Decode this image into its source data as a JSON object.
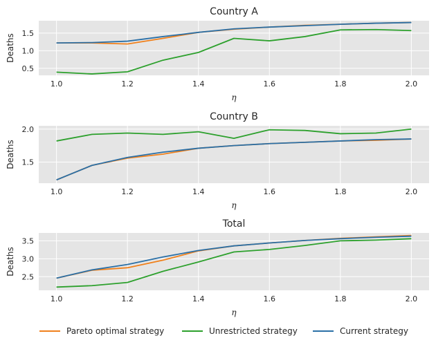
{
  "chart_data": [
    {
      "type": "line",
      "title": "Country A",
      "xlabel": "η",
      "ylabel": "Deaths",
      "xlim": [
        0.95,
        2.05
      ],
      "ylim": [
        0.3,
        1.85
      ],
      "xticks": [
        "1.0",
        "1.2",
        "1.4",
        "1.6",
        "1.8",
        "2.0"
      ],
      "yticks": [
        "0.5",
        "1.0",
        "1.5"
      ],
      "grid": true,
      "x": [
        1.0,
        1.1,
        1.2,
        1.3,
        1.4,
        1.5,
        1.6,
        1.7,
        1.8,
        1.9,
        2.0
      ],
      "series": [
        {
          "name": "Pareto optimal strategy",
          "color": "#f0801b",
          "values": [
            1.22,
            1.22,
            1.19,
            1.35,
            1.52,
            1.61,
            1.67,
            1.72,
            1.75,
            1.78,
            1.8
          ]
        },
        {
          "name": "Unrestricted strategy",
          "color": "#2ca02c",
          "values": [
            0.39,
            0.34,
            0.4,
            0.73,
            0.95,
            1.35,
            1.28,
            1.4,
            1.59,
            1.6,
            1.57
          ]
        },
        {
          "name": "Current strategy",
          "color": "#2a6fa6",
          "values": [
            1.22,
            1.23,
            1.27,
            1.4,
            1.52,
            1.62,
            1.67,
            1.71,
            1.75,
            1.78,
            1.8
          ]
        }
      ]
    },
    {
      "type": "line",
      "title": "Country B",
      "xlabel": "η",
      "ylabel": "Deaths",
      "xlim": [
        0.95,
        2.05
      ],
      "ylim": [
        1.18,
        2.05
      ],
      "xticks": [
        "1.0",
        "1.2",
        "1.4",
        "1.6",
        "1.8",
        "2.0"
      ],
      "yticks": [
        "1.5",
        "2.0"
      ],
      "grid": true,
      "x": [
        1.0,
        1.1,
        1.2,
        1.3,
        1.4,
        1.5,
        1.6,
        1.7,
        1.8,
        1.9,
        2.0
      ],
      "series": [
        {
          "name": "Pareto optimal strategy",
          "color": "#f0801b",
          "values": [
            1.23,
            1.45,
            1.56,
            1.62,
            1.71,
            1.75,
            1.78,
            1.8,
            1.82,
            1.83,
            1.85
          ]
        },
        {
          "name": "Unrestricted strategy",
          "color": "#2ca02c",
          "values": [
            1.82,
            1.92,
            1.94,
            1.92,
            1.96,
            1.86,
            1.99,
            1.98,
            1.93,
            1.94,
            2.0
          ]
        },
        {
          "name": "Current strategy",
          "color": "#2a6fa6",
          "values": [
            1.23,
            1.45,
            1.57,
            1.65,
            1.71,
            1.75,
            1.78,
            1.8,
            1.82,
            1.84,
            1.85
          ]
        }
      ]
    },
    {
      "type": "line",
      "title": "Total",
      "xlabel": "η",
      "ylabel": "Deaths",
      "xlim": [
        0.95,
        2.05
      ],
      "ylim": [
        2.12,
        3.72
      ],
      "xticks": [
        "1.0",
        "1.2",
        "1.4",
        "1.6",
        "1.8",
        "2.0"
      ],
      "yticks": [
        "2.5",
        "3.0",
        "3.5"
      ],
      "grid": true,
      "x": [
        1.0,
        1.1,
        1.2,
        1.3,
        1.4,
        1.5,
        1.6,
        1.7,
        1.8,
        1.9,
        2.0
      ],
      "series": [
        {
          "name": "Pareto optimal strategy",
          "color": "#f0801b",
          "values": [
            2.46,
            2.68,
            2.75,
            2.96,
            3.22,
            3.36,
            3.44,
            3.51,
            3.57,
            3.61,
            3.65
          ]
        },
        {
          "name": "Unrestricted strategy",
          "color": "#2ca02c",
          "values": [
            2.21,
            2.25,
            2.34,
            2.65,
            2.91,
            3.19,
            3.26,
            3.37,
            3.5,
            3.52,
            3.56
          ]
        },
        {
          "name": "Current strategy",
          "color": "#2a6fa6",
          "values": [
            2.46,
            2.69,
            2.84,
            3.05,
            3.23,
            3.36,
            3.44,
            3.51,
            3.56,
            3.6,
            3.63
          ]
        }
      ]
    }
  ],
  "legend": {
    "placement": "bottom",
    "items": [
      {
        "label": "Pareto optimal strategy",
        "color": "#f0801b"
      },
      {
        "label": "Unrestricted strategy",
        "color": "#2ca02c"
      },
      {
        "label": "Current strategy",
        "color": "#2a6fa6"
      }
    ]
  },
  "style": {
    "plot_background": "#e5e5e5",
    "grid_color": "#ffffff"
  }
}
